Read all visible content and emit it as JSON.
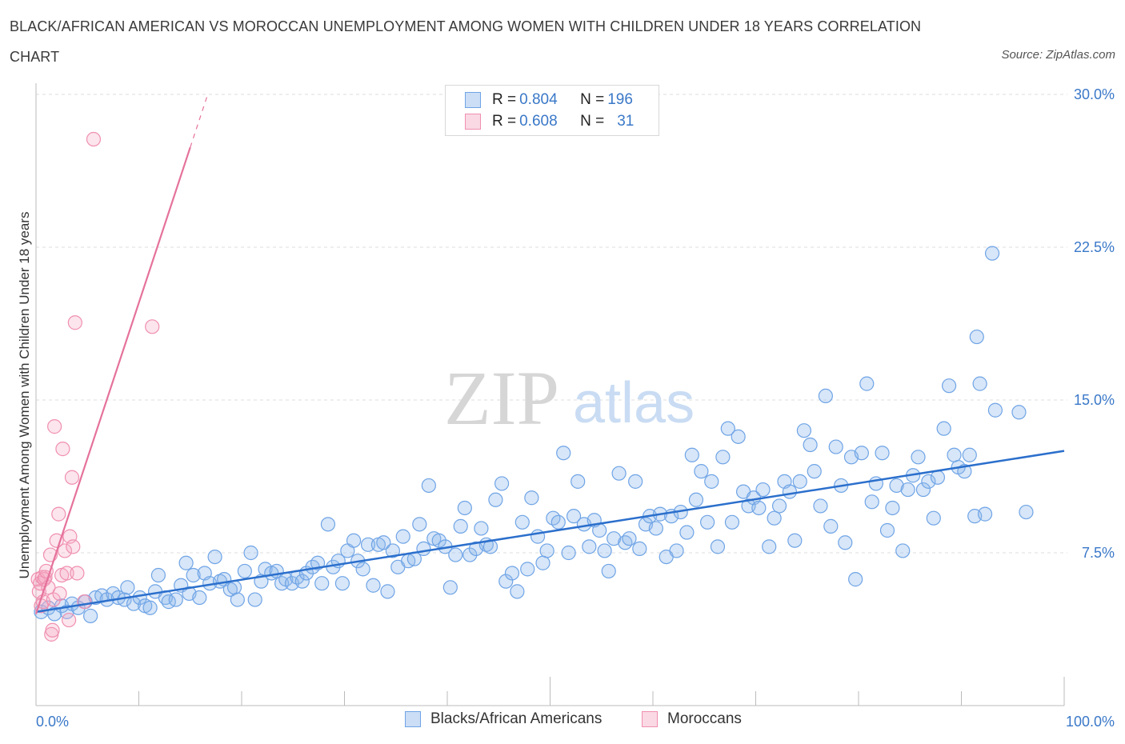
{
  "title": "BLACK/AFRICAN AMERICAN VS MOROCCAN UNEMPLOYMENT AMONG WOMEN WITH CHILDREN UNDER 18 YEARS CORRELATION CHART",
  "source": "Source: ZipAtlas.com",
  "watermark": {
    "zip": "ZIP",
    "atlas": "atlas"
  },
  "legend_top": {
    "rows": [
      {
        "r_label": "R = ",
        "r_value": "0.804",
        "n_label": "N = ",
        "n_value": "196",
        "color": "#6fa4e6"
      },
      {
        "r_label": "R = ",
        "r_value": "0.608",
        "n_label": "N = ",
        "n_value": "31",
        "color": "#f08fb0"
      }
    ]
  },
  "legend_bottom": {
    "blacks": "Blacks/African Americans",
    "moroccans": "Moroccans"
  },
  "colors": {
    "blue": "#6fa4e6",
    "blue_fill": "rgba(140,182,236,0.35)",
    "blue_line": "#2b6fcc",
    "pink": "#f08fb0",
    "pink_fill": "rgba(244,170,196,0.30)",
    "pink_line": "#e5729b",
    "axis_text": "#3a78c8",
    "grid": "#dedede"
  },
  "chart_data": {
    "type": "scatter",
    "title": "BLACK/AFRICAN AMERICAN VS MOROCCAN UNEMPLOYMENT AMONG WOMEN WITH CHILDREN UNDER 18 YEARS CORRELATION CHART",
    "xlabel": "",
    "ylabel": "Unemployment Among Women with Children Under 18 years",
    "xlim": [
      0,
      100
    ],
    "ylim": [
      0,
      30
    ],
    "x_tick_labels": [
      "0.0%",
      "100.0%"
    ],
    "y_ticks": [
      7.5,
      15.0,
      22.5,
      30.0
    ],
    "y_tick_labels": [
      "7.5%",
      "15.0%",
      "22.5%",
      "30.0%"
    ],
    "grid": true,
    "legend_position": "top-center",
    "series": [
      {
        "name": "Blacks/African Americans",
        "r": 0.804,
        "n": 196,
        "trend": [
          [
            0,
            4.6
          ],
          [
            100,
            12.5
          ]
        ],
        "points": [
          [
            0.5,
            4.6
          ],
          [
            1.2,
            4.8
          ],
          [
            1.8,
            4.5
          ],
          [
            2.5,
            4.9
          ],
          [
            3,
            4.6
          ],
          [
            3.5,
            5
          ],
          [
            4.1,
            4.8
          ],
          [
            4.8,
            5.1
          ],
          [
            5.3,
            4.4
          ],
          [
            5.8,
            5.3
          ],
          [
            6.4,
            5.4
          ],
          [
            6.9,
            5.2
          ],
          [
            7.5,
            5.5
          ],
          [
            8.0,
            5.3
          ],
          [
            8.6,
            5.2
          ],
          [
            8.9,
            5.8
          ],
          [
            9.5,
            5.0
          ],
          [
            10.1,
            5.3
          ],
          [
            10.6,
            4.9
          ],
          [
            11.1,
            4.8
          ],
          [
            11.6,
            5.6
          ],
          [
            11.9,
            6.4
          ],
          [
            12.6,
            5.3
          ],
          [
            12.9,
            5.1
          ],
          [
            13.6,
            5.2
          ],
          [
            14.1,
            5.9
          ],
          [
            14.6,
            7.0
          ],
          [
            14.9,
            5.5
          ],
          [
            15.3,
            6.4
          ],
          [
            15.9,
            5.3
          ],
          [
            16.4,
            6.5
          ],
          [
            16.9,
            6.0
          ],
          [
            17.4,
            7.3
          ],
          [
            17.9,
            6.1
          ],
          [
            18.3,
            6.2
          ],
          [
            18.9,
            5.7
          ],
          [
            19.3,
            5.8
          ],
          [
            19.6,
            5.2
          ],
          [
            20.3,
            6.6
          ],
          [
            20.9,
            7.5
          ],
          [
            21.3,
            5.2
          ],
          [
            21.9,
            6.1
          ],
          [
            22.3,
            6.7
          ],
          [
            22.9,
            6.5
          ],
          [
            23.4,
            6.6
          ],
          [
            23.9,
            6.0
          ],
          [
            24.3,
            6.2
          ],
          [
            24.9,
            6.0
          ],
          [
            25.4,
            6.3
          ],
          [
            25.9,
            6.1
          ],
          [
            26.3,
            6.5
          ],
          [
            26.9,
            6.8
          ],
          [
            27.4,
            7.0
          ],
          [
            27.8,
            6.0
          ],
          [
            28.4,
            8.9
          ],
          [
            28.9,
            6.8
          ],
          [
            29.4,
            7.1
          ],
          [
            29.8,
            6.0
          ],
          [
            30.3,
            7.6
          ],
          [
            30.9,
            8.1
          ],
          [
            31.3,
            7.1
          ],
          [
            31.8,
            6.7
          ],
          [
            32.3,
            7.9
          ],
          [
            32.8,
            5.9
          ],
          [
            33.3,
            7.9
          ],
          [
            33.8,
            8.0
          ],
          [
            34.2,
            5.6
          ],
          [
            34.7,
            7.6
          ],
          [
            35.2,
            6.8
          ],
          [
            35.7,
            8.3
          ],
          [
            36.2,
            7.1
          ],
          [
            36.8,
            7.2
          ],
          [
            37.3,
            8.9
          ],
          [
            37.7,
            7.7
          ],
          [
            38.2,
            10.8
          ],
          [
            38.7,
            8.2
          ],
          [
            39.2,
            8.1
          ],
          [
            39.8,
            7.8
          ],
          [
            40.3,
            5.8
          ],
          [
            40.8,
            7.4
          ],
          [
            41.3,
            8.8
          ],
          [
            41.7,
            9.7
          ],
          [
            42.2,
            7.4
          ],
          [
            42.8,
            7.7
          ],
          [
            43.3,
            8.7
          ],
          [
            43.8,
            7.9
          ],
          [
            44.2,
            7.8
          ],
          [
            44.7,
            10.1
          ],
          [
            45.3,
            10.9
          ],
          [
            45.7,
            6.1
          ],
          [
            46.3,
            6.5
          ],
          [
            46.8,
            5.6
          ],
          [
            47.3,
            9.0
          ],
          [
            47.8,
            6.7
          ],
          [
            48.2,
            10.2
          ],
          [
            48.8,
            8.3
          ],
          [
            49.3,
            7.0
          ],
          [
            49.7,
            7.6
          ],
          [
            50.3,
            9.2
          ],
          [
            50.8,
            9.0
          ],
          [
            51.3,
            12.4
          ],
          [
            51.8,
            7.5
          ],
          [
            52.3,
            9.3
          ],
          [
            52.7,
            11.0
          ],
          [
            53.3,
            8.9
          ],
          [
            53.8,
            7.8
          ],
          [
            54.3,
            9.1
          ],
          [
            54.8,
            8.6
          ],
          [
            55.3,
            7.6
          ],
          [
            55.7,
            6.6
          ],
          [
            56.2,
            8.2
          ],
          [
            56.7,
            11.4
          ],
          [
            57.3,
            8.0
          ],
          [
            57.7,
            8.2
          ],
          [
            58.3,
            11.0
          ],
          [
            58.7,
            7.7
          ],
          [
            59.3,
            8.9
          ],
          [
            59.7,
            9.3
          ],
          [
            60.3,
            8.7
          ],
          [
            60.7,
            9.4
          ],
          [
            61.3,
            7.3
          ],
          [
            61.8,
            9.3
          ],
          [
            62.3,
            7.6
          ],
          [
            62.7,
            9.5
          ],
          [
            63.3,
            8.5
          ],
          [
            63.8,
            12.3
          ],
          [
            64.2,
            10.1
          ],
          [
            64.7,
            11.5
          ],
          [
            65.3,
            9.0
          ],
          [
            65.7,
            11.0
          ],
          [
            66.3,
            7.8
          ],
          [
            66.8,
            12.2
          ],
          [
            67.3,
            13.6
          ],
          [
            67.7,
            9.0
          ],
          [
            68.3,
            13.2
          ],
          [
            68.8,
            10.5
          ],
          [
            69.3,
            9.8
          ],
          [
            69.8,
            10.2
          ],
          [
            70.3,
            9.7
          ],
          [
            70.7,
            10.6
          ],
          [
            71.3,
            7.8
          ],
          [
            71.8,
            9.2
          ],
          [
            72.3,
            9.8
          ],
          [
            72.8,
            11.0
          ],
          [
            73.3,
            10.5
          ],
          [
            73.8,
            8.1
          ],
          [
            74.3,
            11.0
          ],
          [
            74.7,
            13.5
          ],
          [
            75.3,
            12.8
          ],
          [
            75.7,
            11.5
          ],
          [
            76.3,
            9.8
          ],
          [
            76.8,
            15.2
          ],
          [
            77.3,
            8.8
          ],
          [
            77.8,
            12.7
          ],
          [
            78.3,
            10.8
          ],
          [
            78.7,
            8.0
          ],
          [
            79.3,
            12.2
          ],
          [
            79.7,
            6.2
          ],
          [
            80.3,
            12.4
          ],
          [
            80.8,
            15.8
          ],
          [
            81.3,
            10.0
          ],
          [
            81.7,
            10.9
          ],
          [
            82.3,
            12.4
          ],
          [
            82.8,
            8.6
          ],
          [
            83.3,
            9.7
          ],
          [
            83.7,
            10.8
          ],
          [
            84.3,
            7.6
          ],
          [
            84.8,
            10.6
          ],
          [
            85.3,
            11.3
          ],
          [
            85.8,
            12.2
          ],
          [
            86.3,
            10.6
          ],
          [
            86.8,
            11.0
          ],
          [
            87.3,
            9.2
          ],
          [
            87.7,
            11.2
          ],
          [
            88.3,
            13.6
          ],
          [
            88.8,
            15.7
          ],
          [
            89.3,
            12.3
          ],
          [
            89.7,
            11.7
          ],
          [
            90.3,
            11.5
          ],
          [
            90.8,
            12.3
          ],
          [
            91.3,
            9.3
          ],
          [
            91.8,
            15.8
          ],
          [
            92.3,
            9.4
          ],
          [
            93.0,
            22.2
          ],
          [
            93.3,
            14.5
          ],
          [
            95.6,
            14.4
          ],
          [
            96.3,
            9.5
          ],
          [
            91.5,
            18.1
          ]
        ]
      },
      {
        "name": "Moroccans",
        "r": 0.608,
        "n": 31,
        "trend": [
          [
            0,
            4.5
          ],
          [
            15,
            27.4
          ]
        ],
        "points": [
          [
            0.2,
            6.2
          ],
          [
            0.3,
            5.6
          ],
          [
            0.4,
            6.0
          ],
          [
            0.5,
            4.9
          ],
          [
            0.6,
            6.3
          ],
          [
            0.7,
            5.1
          ],
          [
            0.8,
            6.2
          ],
          [
            0.9,
            6.3
          ],
          [
            1.0,
            6.6
          ],
          [
            1.2,
            5.8
          ],
          [
            1.4,
            7.4
          ],
          [
            1.5,
            3.5
          ],
          [
            1.6,
            3.7
          ],
          [
            1.7,
            5.2
          ],
          [
            1.8,
            13.7
          ],
          [
            2.0,
            8.1
          ],
          [
            2.2,
            9.4
          ],
          [
            2.3,
            5.5
          ],
          [
            2.5,
            6.4
          ],
          [
            2.6,
            12.6
          ],
          [
            2.8,
            7.6
          ],
          [
            3.0,
            6.5
          ],
          [
            3.2,
            4.2
          ],
          [
            3.3,
            8.3
          ],
          [
            3.5,
            11.2
          ],
          [
            3.6,
            7.8
          ],
          [
            3.8,
            18.8
          ],
          [
            4.0,
            6.5
          ],
          [
            4.7,
            5.1
          ],
          [
            5.6,
            27.8
          ],
          [
            11.3,
            18.6
          ]
        ]
      }
    ]
  }
}
